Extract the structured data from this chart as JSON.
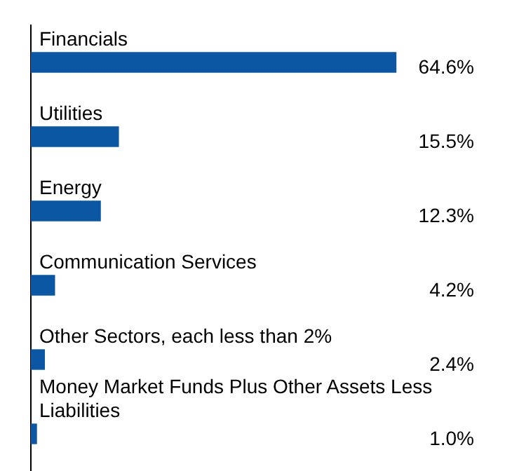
{
  "chart_data": {
    "type": "bar",
    "orientation": "horizontal",
    "categories": [
      "Financials",
      "Utilities",
      "Energy",
      "Communication Services",
      "Other Sectors, each less than 2%",
      "Money Market Funds Plus Other Assets Less Liabilities"
    ],
    "values": [
      64.6,
      15.5,
      12.3,
      4.2,
      2.4,
      1.0
    ],
    "value_labels": [
      "64.6%",
      "15.5%",
      "12.3%",
      "4.2%",
      "2.4%",
      "1.0%"
    ],
    "color": "#0b57a4",
    "grid": false,
    "legend": false
  }
}
